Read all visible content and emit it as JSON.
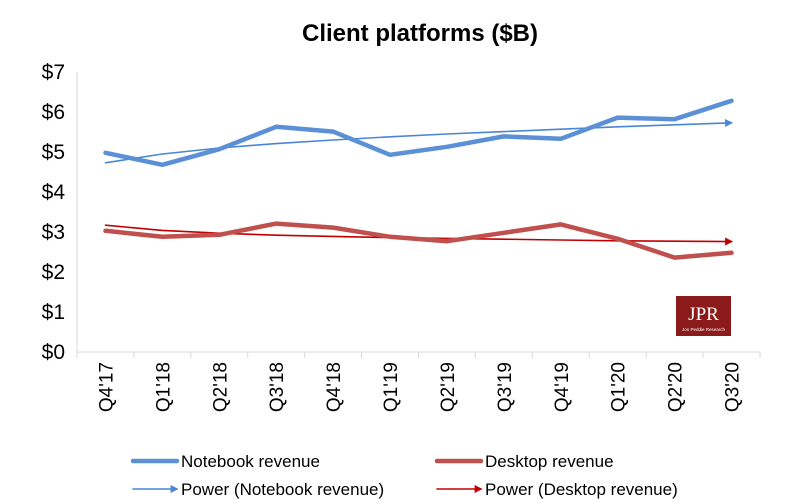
{
  "chart_data": {
    "type": "line",
    "title": "Client platforms ($B)",
    "xlabel": "",
    "ylabel": "",
    "categories": [
      "Q4'17",
      "Q1'18",
      "Q2'18",
      "Q3'18",
      "Q4'18",
      "Q1'19",
      "Q2'19",
      "Q3'19",
      "Q4'19",
      "Q1'20",
      "Q2'20",
      "Q3'20"
    ],
    "ylim": [
      0,
      7
    ],
    "yticks": [
      0,
      1,
      2,
      3,
      4,
      5,
      6,
      7
    ],
    "ytick_labels": [
      "$0",
      "$1",
      "$2",
      "$3",
      "$4",
      "$5",
      "$6",
      "$7"
    ],
    "grid": false,
    "legend_position": "bottom",
    "series": [
      {
        "name": "Notebook revenue",
        "color": "#5b8fd6",
        "style": "thick-line",
        "values": [
          4.98,
          4.68,
          5.07,
          5.63,
          5.51,
          4.93,
          5.13,
          5.39,
          5.33,
          5.86,
          5.82,
          6.28
        ]
      },
      {
        "name": "Desktop revenue",
        "color": "#c0504d",
        "style": "thick-line",
        "values": [
          3.03,
          2.88,
          2.93,
          3.21,
          3.11,
          2.88,
          2.77,
          2.98,
          3.19,
          2.83,
          2.36,
          2.48
        ]
      },
      {
        "name": "Power (Notebook revenue)",
        "color": "#4a86d6",
        "style": "trendline-arrow",
        "values": [
          4.73,
          4.95,
          5.1,
          5.21,
          5.3,
          5.38,
          5.45,
          5.51,
          5.57,
          5.63,
          5.68,
          5.73
        ]
      },
      {
        "name": "Power (Desktop revenue)",
        "color": "#c00000",
        "style": "trendline-arrow",
        "values": [
          3.17,
          3.04,
          2.97,
          2.92,
          2.89,
          2.86,
          2.84,
          2.82,
          2.8,
          2.78,
          2.77,
          2.76
        ]
      }
    ]
  },
  "logo": {
    "text": "JPR",
    "subtext": "Jon Peddie Research",
    "background": "#8b1a1a"
  }
}
